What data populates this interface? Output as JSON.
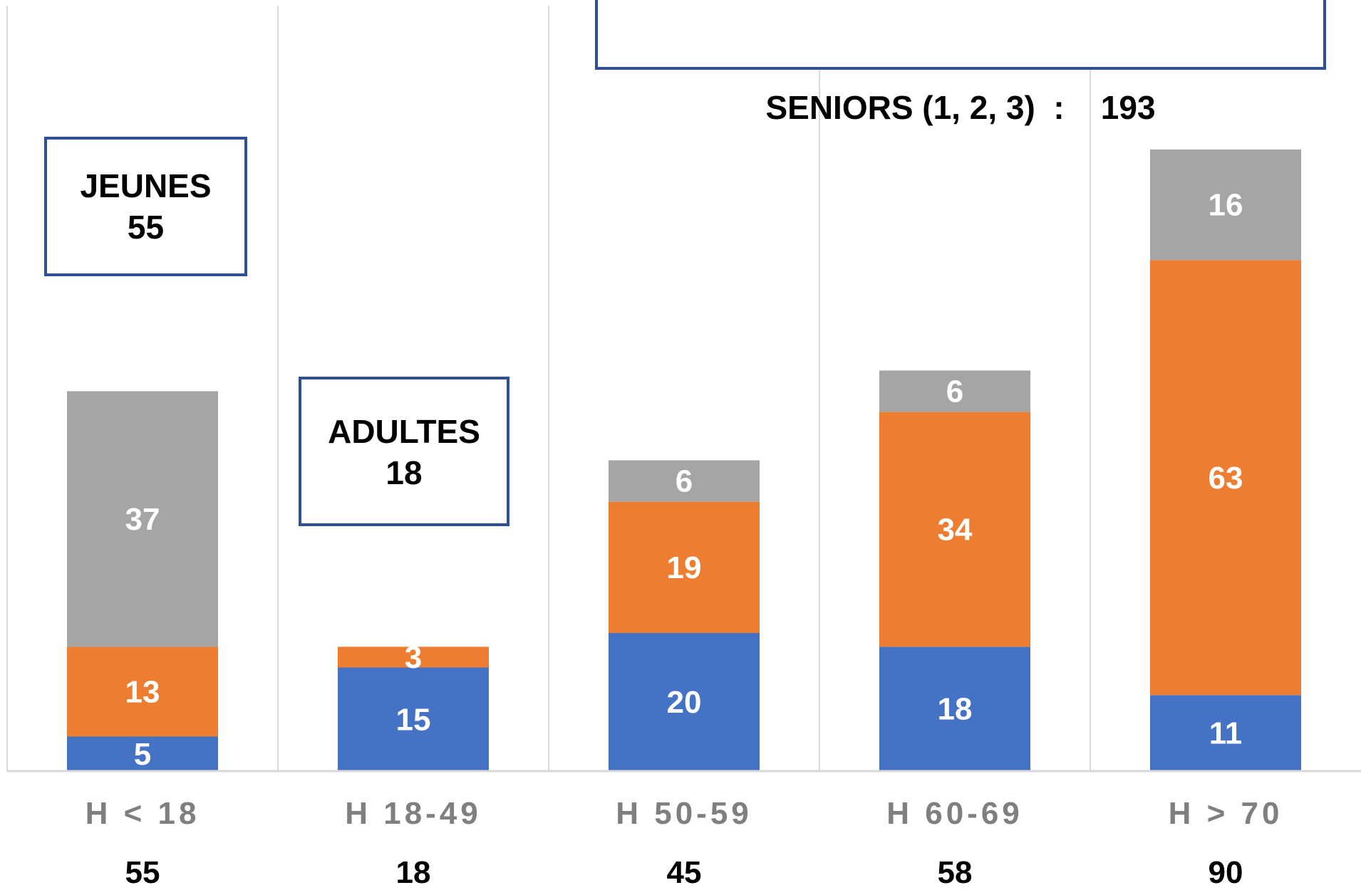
{
  "chart_data": {
    "type": "bar",
    "stacked": true,
    "categories": [
      "H < 18",
      "H 18-49",
      "H 50-59",
      "H 60-69",
      "H  > 70"
    ],
    "series": [
      {
        "values": [
          5,
          15,
          20,
          18,
          11
        ],
        "color": "#4472c4"
      },
      {
        "values": [
          13,
          3,
          19,
          34,
          63
        ],
        "color": "#ed7d31"
      },
      {
        "values": [
          37,
          0,
          6,
          6,
          16
        ],
        "color": "#a5a5a5"
      }
    ],
    "totals": [
      "55",
      "18",
      "45",
      "58",
      "90"
    ],
    "ylim": [
      0,
      100
    ],
    "grid": "vertical-separators",
    "legend": "none"
  },
  "annotations": {
    "jeunes": {
      "label": "JEUNES",
      "value": "55"
    },
    "adultes": {
      "label": "ADULTES",
      "value": "18"
    },
    "seniors": {
      "text": "SENIORS (1, 2, 3)  :    193"
    }
  }
}
